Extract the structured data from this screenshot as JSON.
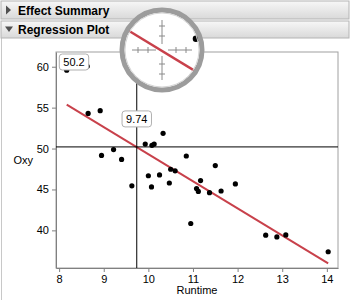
{
  "report_headers": [
    "Effect Summary",
    "Regression Plot"
  ],
  "chart_data": {
    "type": "scatter",
    "xlabel": "Runtime",
    "ylabel": "Oxy",
    "x": [
      11.37,
      10.07,
      8.65,
      8.17,
      9.22,
      11.63,
      11.95,
      10.85,
      13.08,
      8.63,
      10.13,
      14.03,
      11.12,
      10.6,
      10.33,
      8.95,
      10.95,
      10.0,
      10.25,
      10.08,
      12.63,
      11.17,
      9.63,
      8.92,
      11.08,
      12.88,
      10.47,
      9.93,
      9.4,
      11.5,
      10.5
    ],
    "values": [
      44.609,
      45.313,
      54.297,
      59.571,
      49.874,
      44.811,
      45.681,
      49.091,
      39.442,
      60.055,
      50.541,
      37.388,
      44.754,
      47.273,
      51.855,
      49.156,
      40.836,
      46.672,
      46.774,
      50.388,
      39.407,
      46.08,
      45.441,
      54.625,
      45.118,
      39.203,
      45.79,
      50.545,
      48.673,
      47.92,
      47.467
    ],
    "color": "#000000",
    "marker": "circle",
    "xlim": [
      7.93,
      14.25
    ],
    "ylim": [
      35.4,
      61.8
    ],
    "xticks": [
      8,
      9,
      10,
      11,
      12,
      13,
      14
    ],
    "yticks": [
      40,
      45,
      50,
      55,
      60
    ],
    "fit": {
      "type": "line",
      "x": [
        8.17,
        14.03
      ],
      "values": [
        55.37,
        35.97
      ],
      "color": "#c8414b"
    },
    "crosshair": {
      "x": 9.74,
      "y": 50.2
    }
  }
}
